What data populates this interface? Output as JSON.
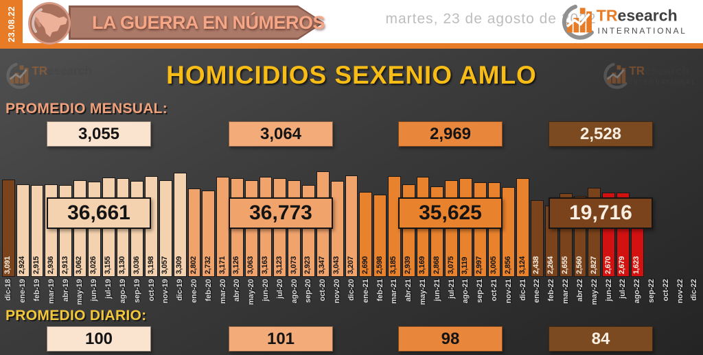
{
  "header": {
    "date_badge": "23.08.22",
    "banner_title": "LA GUERRA EN NÚMEROS",
    "date_long": "martes, 23 de agosto de 2022",
    "brand": {
      "name_prefix": "TR",
      "name_suffix": "esearch",
      "subtitle": "INTERNATIONAL"
    }
  },
  "main": {
    "title": "HOMICIDIOS SEXENIO AMLO",
    "monthly_avg_label": "PROMEDIO MENSUAL:",
    "daily_avg_label": "PROMEDIO DIARIO:",
    "monthly_averages": [
      {
        "value": "3,055",
        "style": "cream"
      },
      {
        "value": "3,064",
        "style": "peach"
      },
      {
        "value": "2,969",
        "style": "orange"
      },
      {
        "value": "2,528",
        "style": "brown"
      }
    ],
    "daily_averages": [
      {
        "value": "100",
        "style": "cream"
      },
      {
        "value": "101",
        "style": "peach"
      },
      {
        "value": "98",
        "style": "orange"
      },
      {
        "value": "84",
        "style": "brown"
      }
    ],
    "year_totals": [
      {
        "value": "36,661",
        "style": "cream"
      },
      {
        "value": "36,773",
        "style": "peach"
      },
      {
        "value": "35,625",
        "style": "orange"
      },
      {
        "value": "19,716",
        "style": "brown"
      }
    ]
  },
  "palette": {
    "accent_orange": "#E87B25",
    "title_yellow": "#F7BC16",
    "label_salmon": "#F0A17C",
    "label_yellow": "#F3C73C",
    "dark_text": "#141414",
    "light_text": "#F8EFE2",
    "box_cream": "#FBE4CF",
    "box_peach": "#F3AB7A",
    "box_orange": "#E8873C",
    "box_brown": "#7C4A20"
  },
  "chart_data": {
    "type": "bar",
    "title": "HOMICIDIOS SEXENIO AMLO",
    "ylabel": "",
    "xlabel": "",
    "ylim": [
      0,
      3400
    ],
    "grid": false,
    "styles": {
      "brown": {
        "fill": "#7B431B",
        "text": "#F8EFE2"
      },
      "cream": {
        "fill": "#F5D2AF",
        "text": "#141414"
      },
      "peach": {
        "fill": "#F1A36C",
        "text": "#141414"
      },
      "orange": {
        "fill": "#E9822D",
        "text": "#141414"
      },
      "red": {
        "fill": "#D21111",
        "text": "#F8EFE2"
      }
    },
    "bars": [
      {
        "month": "dic-18",
        "value": 3091,
        "style": "brown"
      },
      {
        "month": "ene-19",
        "value": 2924,
        "style": "cream"
      },
      {
        "month": "feb-19",
        "value": 2915,
        "style": "cream"
      },
      {
        "month": "mar-19",
        "value": 2936,
        "style": "cream"
      },
      {
        "month": "abr-19",
        "value": 2913,
        "style": "cream"
      },
      {
        "month": "may-19",
        "value": 3062,
        "style": "cream"
      },
      {
        "month": "jun-19",
        "value": 3026,
        "style": "cream"
      },
      {
        "month": "jul-19",
        "value": 3155,
        "style": "cream"
      },
      {
        "month": "ago-19",
        "value": 3130,
        "style": "cream"
      },
      {
        "month": "sep-19",
        "value": 3036,
        "style": "cream"
      },
      {
        "month": "oct-19",
        "value": 3198,
        "style": "cream"
      },
      {
        "month": "nov-19",
        "value": 3057,
        "style": "cream"
      },
      {
        "month": "dic-19",
        "value": 3309,
        "style": "cream"
      },
      {
        "month": "ene-20",
        "value": 2802,
        "style": "peach"
      },
      {
        "month": "feb-20",
        "value": 2732,
        "style": "peach"
      },
      {
        "month": "mar-20",
        "value": 3171,
        "style": "peach"
      },
      {
        "month": "abr-20",
        "value": 3126,
        "style": "peach"
      },
      {
        "month": "may-20",
        "value": 3063,
        "style": "peach"
      },
      {
        "month": "jun-20",
        "value": 3163,
        "style": "peach"
      },
      {
        "month": "jul-20",
        "value": 3123,
        "style": "peach"
      },
      {
        "month": "ago-20",
        "value": 3073,
        "style": "peach"
      },
      {
        "month": "sep-20",
        "value": 2923,
        "style": "peach"
      },
      {
        "month": "oct-20",
        "value": 3347,
        "style": "peach"
      },
      {
        "month": "nov-20",
        "value": 3043,
        "style": "peach"
      },
      {
        "month": "dic-20",
        "value": 3207,
        "style": "peach"
      },
      {
        "month": "ene-21",
        "value": 2690,
        "style": "orange"
      },
      {
        "month": "feb-21",
        "value": 2598,
        "style": "orange"
      },
      {
        "month": "mar-21",
        "value": 3185,
        "style": "orange"
      },
      {
        "month": "abr-21",
        "value": 2939,
        "style": "orange"
      },
      {
        "month": "may-21",
        "value": 3169,
        "style": "orange"
      },
      {
        "month": "jun-21",
        "value": 2868,
        "style": "orange"
      },
      {
        "month": "jul-21",
        "value": 3075,
        "style": "orange"
      },
      {
        "month": "ago-21",
        "value": 3119,
        "style": "orange"
      },
      {
        "month": "sep-21",
        "value": 2997,
        "style": "orange"
      },
      {
        "month": "oct-21",
        "value": 3005,
        "style": "orange"
      },
      {
        "month": "nov-21",
        "value": 2856,
        "style": "orange"
      },
      {
        "month": "dic-21",
        "value": 3124,
        "style": "orange"
      },
      {
        "month": "ene-22",
        "value": 2438,
        "style": "brown"
      },
      {
        "month": "feb-22",
        "value": 2264,
        "style": "brown"
      },
      {
        "month": "mar-22",
        "value": 2655,
        "style": "brown"
      },
      {
        "month": "abr-22",
        "value": 2560,
        "style": "brown"
      },
      {
        "month": "may-22",
        "value": 2827,
        "style": "brown"
      },
      {
        "month": "jun-22",
        "value": 2670,
        "style": "red"
      },
      {
        "month": "jul-22",
        "value": 2679,
        "style": "red"
      },
      {
        "month": "ago-22",
        "value": 1623,
        "style": "red"
      },
      {
        "month": "sep-22",
        "value": null,
        "style": null
      },
      {
        "month": "oct-22",
        "value": null,
        "style": null
      },
      {
        "month": "nov-22",
        "value": null,
        "style": null
      },
      {
        "month": "dic-22",
        "value": null,
        "style": null
      }
    ]
  }
}
